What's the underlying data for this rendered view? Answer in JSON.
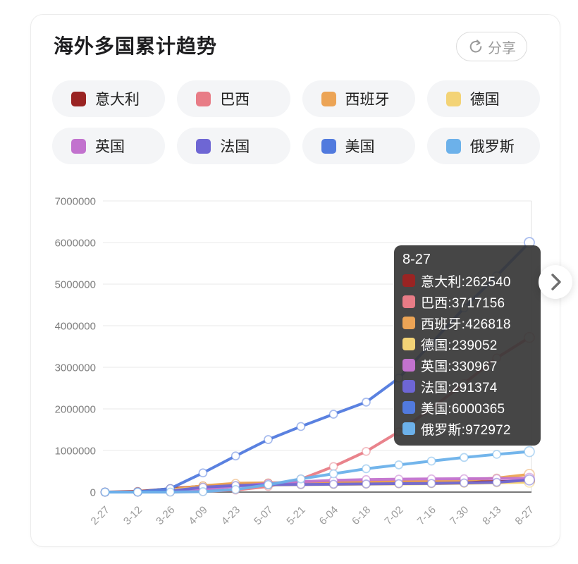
{
  "header": {
    "title": "海外多国累计趋势",
    "share_label": "分享",
    "share_icon": "circular-arrow-share-icon"
  },
  "legend": {
    "items": [
      {
        "label": "意大利",
        "color": "#9a2423"
      },
      {
        "label": "巴西",
        "color": "#e87c86"
      },
      {
        "label": "西班牙",
        "color": "#eca455"
      },
      {
        "label": "德国",
        "color": "#f3d376"
      },
      {
        "label": "英国",
        "color": "#c272ce"
      },
      {
        "label": "法国",
        "color": "#6e66d4"
      },
      {
        "label": "美国",
        "color": "#517ade"
      },
      {
        "label": "俄罗斯",
        "color": "#6cb1ea"
      }
    ]
  },
  "tooltip": {
    "title": "8-27",
    "rows": [
      {
        "label": "意大利",
        "value": 262540,
        "color": "#9a2423"
      },
      {
        "label": "巴西",
        "value": 3717156,
        "color": "#e87c86"
      },
      {
        "label": "西班牙",
        "value": 426818,
        "color": "#eca455"
      },
      {
        "label": "德国",
        "value": 239052,
        "color": "#f3d376"
      },
      {
        "label": "英国",
        "value": 330967,
        "color": "#c272ce"
      },
      {
        "label": "法国",
        "value": 291374,
        "color": "#6e66d4"
      },
      {
        "label": "美国",
        "value": 6000365,
        "color": "#517ade"
      },
      {
        "label": "俄罗斯",
        "value": 972972,
        "color": "#6cb1ea"
      }
    ]
  },
  "pager": {
    "icon": "chevron-right"
  },
  "chart_data": {
    "type": "line",
    "title": "海外多国累计趋势",
    "x": [
      "2-27",
      "3-12",
      "3-26",
      "4-09",
      "4-23",
      "5-07",
      "5-21",
      "6-04",
      "6-18",
      "7-02",
      "7-16",
      "7-30",
      "8-13",
      "8-27"
    ],
    "ylim": [
      0,
      7000000
    ],
    "yticks": [
      0,
      1000000,
      2000000,
      3000000,
      4000000,
      5000000,
      6000000,
      7000000
    ],
    "grid": true,
    "legend_position": "top",
    "highlighted_x": "8-27",
    "series": [
      {
        "name": "意大利",
        "color": "#9a2423",
        "values": [
          650,
          15113,
          80539,
          143626,
          189973,
          215858,
          228006,
          234013,
          238159,
          240961,
          243736,
          246776,
          252235,
          262540
        ]
      },
      {
        "name": "巴西",
        "color": "#e87c86",
        "values": [
          1,
          60,
          2915,
          17857,
          49492,
          135106,
          310087,
          614941,
          978142,
          1448753,
          2012151,
          2610102,
          3224876,
          3717156
        ]
      },
      {
        "name": "西班牙",
        "color": "#eca455",
        "values": [
          12,
          3146,
          56188,
          152446,
          213024,
          221447,
          233037,
          240660,
          245268,
          250545,
          258855,
          285430,
          337334,
          426818
        ]
      },
      {
        "name": "德国",
        "color": "#f3d376",
        "values": [
          46,
          2078,
          43646,
          118181,
          153129,
          169430,
          178473,
          184472,
          189817,
          195893,
          201450,
          208698,
          221413,
          239052
        ]
      },
      {
        "name": "英国",
        "color": "#c272ce",
        "values": [
          15,
          590,
          11658,
          65077,
          138078,
          206715,
          250908,
          281661,
          300469,
          311965,
          317368,
          322280,
          326480,
          330967
        ]
      },
      {
        "name": "法国",
        "color": "#6e66d4",
        "values": [
          38,
          2876,
          25233,
          117749,
          158183,
          174791,
          181575,
          189220,
          195535,
          202775,
          208640,
          220352,
          235210,
          291374
        ]
      },
      {
        "name": "美国",
        "color": "#517ade",
        "values": [
          60,
          1663,
          85612,
          461437,
          869172,
          1263092,
          1577287,
          1872660,
          2163290,
          2739879,
          3576430,
          4426982,
          5199444,
          6000365
        ]
      },
      {
        "name": "俄罗斯",
        "color": "#6cb1ea",
        "values": [
          2,
          28,
          840,
          10131,
          62773,
          177160,
          317554,
          441108,
          561091,
          654405,
          746369,
          832993,
          907758,
          972972
        ]
      }
    ]
  }
}
